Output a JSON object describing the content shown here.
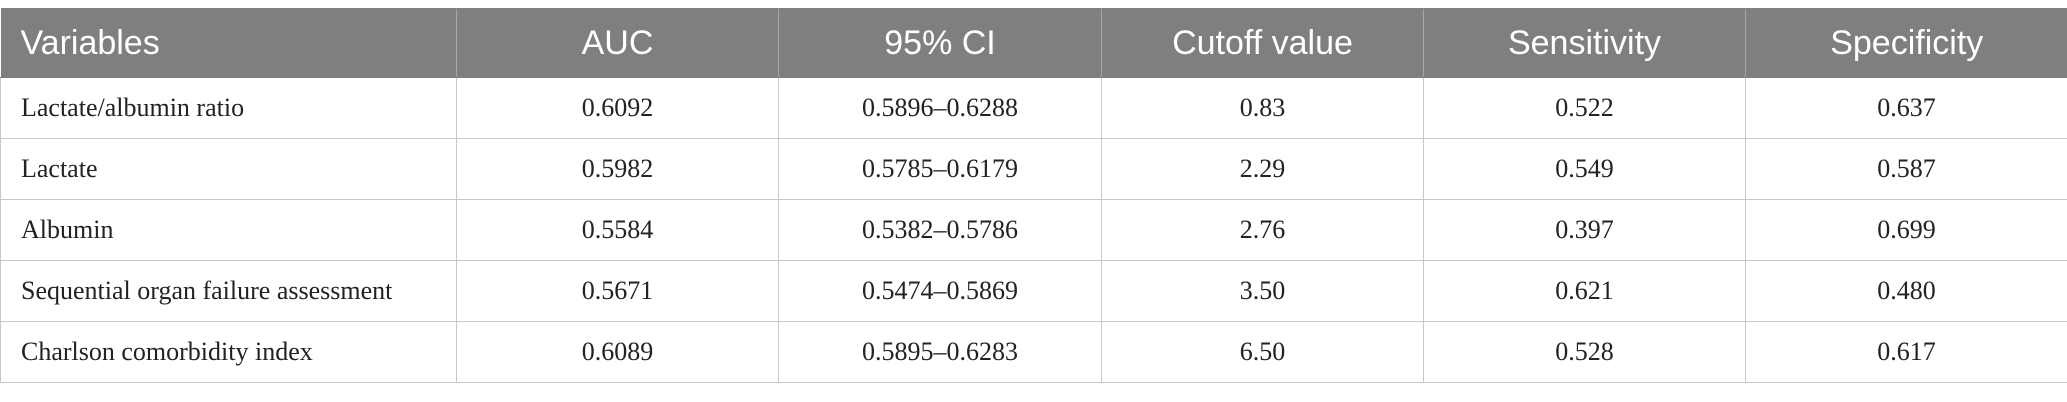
{
  "table": {
    "headers": [
      "Variables",
      "AUC",
      "95% CI",
      "Cutoff value",
      "Sensitivity",
      "Specificity"
    ],
    "rows": [
      [
        "Lactate/albumin ratio",
        "0.6092",
        "0.5896–0.6288",
        "0.83",
        "0.522",
        "0.637"
      ],
      [
        "Lactate",
        "0.5982",
        "0.5785–0.6179",
        "2.29",
        "0.549",
        "0.587"
      ],
      [
        "Albumin",
        "0.5584",
        "0.5382–0.5786",
        "2.76",
        "0.397",
        "0.699"
      ],
      [
        "Sequential organ failure assessment",
        "0.5671",
        "0.5474–0.5869",
        "3.50",
        "0.621",
        "0.480"
      ],
      [
        "Charlson comorbidity index",
        "0.6089",
        "0.5895–0.6283",
        "6.50",
        "0.528",
        "0.617"
      ]
    ]
  }
}
